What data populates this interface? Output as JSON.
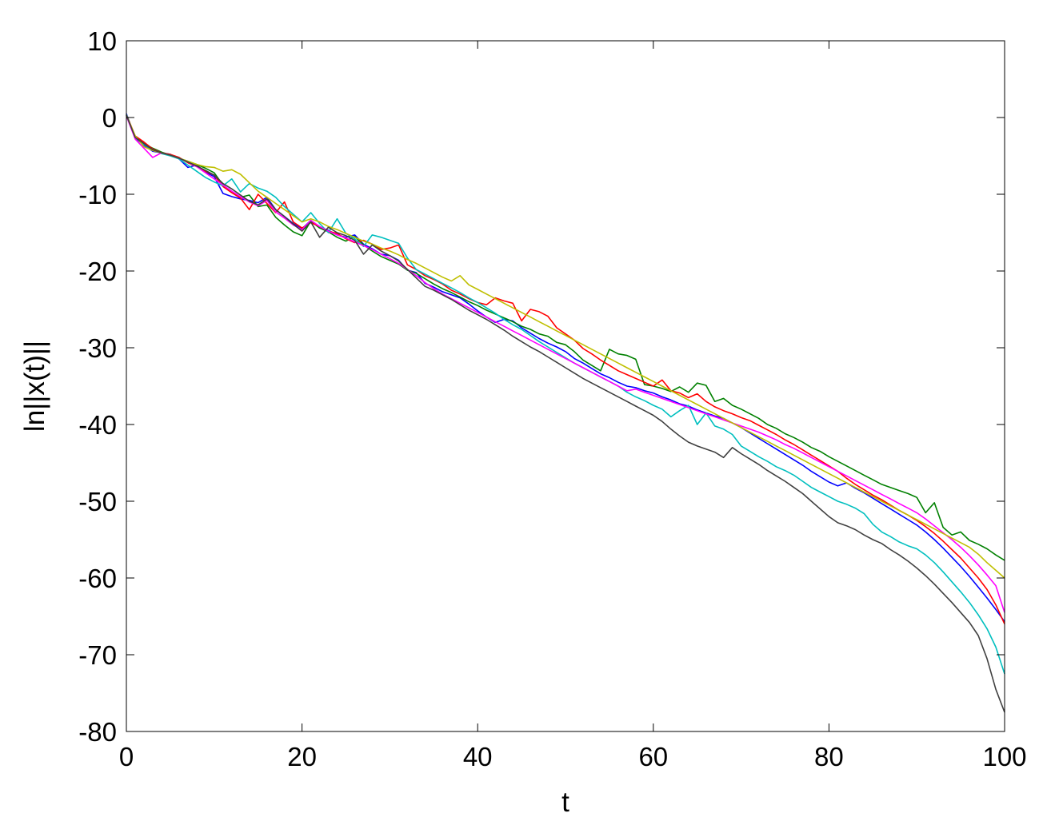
{
  "chart_data": {
    "type": "line",
    "xlabel": "t",
    "ylabel": "ln||x(t)||",
    "xlim": [
      0,
      100
    ],
    "ylim": [
      -80,
      10
    ],
    "xticks": [
      0,
      20,
      40,
      60,
      80,
      100
    ],
    "yticks": [
      10,
      0,
      -10,
      -20,
      -30,
      -40,
      -50,
      -60,
      -70,
      -80
    ],
    "xtick_labels": [
      "0",
      "20",
      "40",
      "60",
      "80",
      "100"
    ],
    "ytick_labels": [
      "10",
      "0",
      "-10",
      "-20",
      "-30",
      "-40",
      "-50",
      "-60",
      "-70",
      "-80"
    ],
    "grid": false,
    "legend": "none",
    "x": [
      0,
      1,
      2,
      3,
      4,
      5,
      6,
      7,
      8,
      9,
      10,
      11,
      12,
      13,
      14,
      15,
      16,
      17,
      18,
      19,
      20,
      21,
      22,
      23,
      24,
      25,
      26,
      27,
      28,
      29,
      30,
      31,
      32,
      33,
      34,
      35,
      36,
      37,
      38,
      39,
      40,
      41,
      42,
      43,
      44,
      45,
      46,
      47,
      48,
      49,
      50,
      51,
      52,
      53,
      54,
      55,
      56,
      57,
      58,
      59,
      60,
      61,
      62,
      63,
      64,
      65,
      66,
      67,
      68,
      69,
      70,
      71,
      72,
      73,
      74,
      75,
      76,
      77,
      78,
      79,
      80,
      81,
      82,
      83,
      84,
      85,
      86,
      87,
      88,
      89,
      90,
      91,
      92,
      93,
      94,
      95,
      96,
      97,
      98,
      99,
      100
    ],
    "series": [
      {
        "color": "#0000ff",
        "values": [
          0.5,
          -2.7,
          -3.6,
          -4.4,
          -4.6,
          -4.8,
          -5.4,
          -6.5,
          -6.2,
          -7.1,
          -7.7,
          -9.9,
          -10.3,
          -10.6,
          -10.8,
          -11.1,
          -10.4,
          -12.0,
          -12.9,
          -13.8,
          -14.5,
          -13.4,
          -14.3,
          -14.7,
          -15.3,
          -15.6,
          -15.3,
          -16.5,
          -17.1,
          -17.8,
          -18.0,
          -18.6,
          -19.9,
          -20.2,
          -21.6,
          -22.1,
          -22.7,
          -23.1,
          -23.5,
          -24.3,
          -25.2,
          -26.0,
          -26.7,
          -26.3,
          -26.5,
          -27.4,
          -28.1,
          -28.8,
          -29.4,
          -29.9,
          -30.5,
          -31.4,
          -32.0,
          -32.7,
          -33.4,
          -33.9,
          -34.5,
          -35.0,
          -35.2,
          -35.6,
          -35.9,
          -36.4,
          -36.8,
          -37.3,
          -37.6,
          -38.1,
          -38.5,
          -38.9,
          -39.2,
          -39.8,
          -40.4,
          -41.1,
          -41.8,
          -42.5,
          -43.2,
          -43.9,
          -44.6,
          -45.3,
          -46.1,
          -46.8,
          -47.5,
          -48.0,
          -47.6,
          -48.3,
          -48.9,
          -49.6,
          -50.3,
          -51.0,
          -51.7,
          -52.4,
          -53.1,
          -54.0,
          -55.0,
          -56.1,
          -57.3,
          -58.5,
          -59.8,
          -61.2,
          -62.6,
          -64.1,
          -65.7
        ]
      },
      {
        "color": "#008000",
        "values": [
          0.3,
          -2.5,
          -3.4,
          -4.0,
          -4.5,
          -4.9,
          -5.3,
          -5.7,
          -6.1,
          -6.6,
          -7.2,
          -8.8,
          -9.7,
          -10.4,
          -10.1,
          -11.6,
          -11.4,
          -13.0,
          -14.0,
          -14.9,
          -15.4,
          -13.5,
          -14.4,
          -14.9,
          -15.6,
          -16.1,
          -15.5,
          -16.6,
          -17.4,
          -18.1,
          -18.6,
          -19.1,
          -19.9,
          -20.3,
          -21.0,
          -21.7,
          -22.3,
          -22.8,
          -23.4,
          -24.0,
          -24.5,
          -25.1,
          -25.6,
          -26.1,
          -26.6,
          -27.2,
          -27.6,
          -28.2,
          -28.5,
          -29.3,
          -29.6,
          -30.5,
          -31.6,
          -32.3,
          -33.0,
          -30.2,
          -30.8,
          -31.0,
          -31.5,
          -34.8,
          -35.0,
          -35.3,
          -35.7,
          -35.1,
          -35.8,
          -34.6,
          -34.9,
          -37.0,
          -36.6,
          -37.5,
          -38.0,
          -38.6,
          -39.2,
          -40.0,
          -40.5,
          -41.2,
          -41.7,
          -42.3,
          -43.0,
          -43.5,
          -44.2,
          -44.8,
          -45.4,
          -46.0,
          -46.6,
          -47.2,
          -47.8,
          -48.2,
          -48.6,
          -49.0,
          -49.5,
          -51.5,
          -50.2,
          -53.4,
          -54.4,
          -54.0,
          -55.1,
          -55.6,
          -56.2,
          -57.0,
          -57.7
        ]
      },
      {
        "color": "#ff0000",
        "values": [
          0.4,
          -2.4,
          -3.2,
          -4.1,
          -4.6,
          -4.8,
          -5.2,
          -5.9,
          -6.4,
          -7.0,
          -7.5,
          -9.0,
          -9.8,
          -10.5,
          -12.0,
          -10.0,
          -11.2,
          -12.4,
          -11.0,
          -13.6,
          -14.4,
          -13.7,
          -14.2,
          -14.8,
          -15.1,
          -15.8,
          -16.3,
          -16.0,
          -16.5,
          -17.2,
          -17.0,
          -16.6,
          -19.2,
          -19.8,
          -20.6,
          -21.1,
          -21.7,
          -22.5,
          -23.0,
          -23.6,
          -24.1,
          -24.4,
          -23.5,
          -23.9,
          -24.2,
          -26.5,
          -25.0,
          -25.3,
          -25.9,
          -27.4,
          -28.2,
          -29.0,
          -30.1,
          -30.8,
          -31.6,
          -32.3,
          -33.0,
          -33.5,
          -34.0,
          -34.5,
          -35.0,
          -34.2,
          -35.6,
          -35.9,
          -36.5,
          -36.0,
          -37.0,
          -37.7,
          -38.2,
          -38.6,
          -39.1,
          -39.5,
          -40.1,
          -40.7,
          -41.3,
          -42.0,
          -42.6,
          -43.3,
          -44.0,
          -44.7,
          -45.4,
          -46.1,
          -47.0,
          -47.8,
          -48.5,
          -49.2,
          -49.8,
          -50.5,
          -51.2,
          -51.8,
          -52.5,
          -53.3,
          -54.2,
          -55.2,
          -56.3,
          -57.4,
          -58.7,
          -60.0,
          -61.5,
          -63.5,
          -66.0
        ]
      },
      {
        "color": "#00bfbf",
        "values": [
          0.4,
          -2.6,
          -3.5,
          -4.2,
          -4.7,
          -5.0,
          -5.4,
          -6.2,
          -7.0,
          -7.8,
          -8.4,
          -8.9,
          -8.0,
          -9.7,
          -8.6,
          -9.2,
          -9.6,
          -10.4,
          -11.6,
          -12.6,
          -13.6,
          -12.4,
          -13.8,
          -15.0,
          -13.2,
          -15.1,
          -15.8,
          -16.8,
          -15.3,
          -15.6,
          -16.0,
          -16.4,
          -18.3,
          -19.8,
          -20.4,
          -21.0,
          -21.6,
          -22.2,
          -22.8,
          -23.5,
          -24.1,
          -24.8,
          -25.5,
          -26.3,
          -27.0,
          -27.6,
          -28.4,
          -29.2,
          -29.9,
          -30.6,
          -31.3,
          -32.0,
          -32.6,
          -33.2,
          -33.8,
          -34.4,
          -35.0,
          -35.8,
          -36.4,
          -36.9,
          -37.5,
          -38.0,
          -39.0,
          -38.2,
          -37.5,
          -40.0,
          -38.5,
          -40.2,
          -40.6,
          -41.3,
          -42.8,
          -43.5,
          -44.2,
          -44.8,
          -45.5,
          -46.0,
          -46.6,
          -47.4,
          -48.2,
          -48.8,
          -49.4,
          -50.0,
          -50.4,
          -50.9,
          -51.6,
          -53.0,
          -54.0,
          -54.6,
          -55.3,
          -55.8,
          -56.2,
          -57.0,
          -58.0,
          -59.2,
          -60.5,
          -61.8,
          -63.2,
          -64.8,
          -66.6,
          -69.0,
          -72.5
        ]
      },
      {
        "color": "#ff00ff",
        "values": [
          0.2,
          -2.8,
          -4.0,
          -5.2,
          -4.6,
          -4.9,
          -5.3,
          -5.8,
          -6.4,
          -7.2,
          -8.0,
          -8.8,
          -9.6,
          -10.3,
          -11.0,
          -11.5,
          -10.8,
          -12.3,
          -13.1,
          -14.0,
          -14.6,
          -13.4,
          -14.2,
          -14.8,
          -15.3,
          -15.7,
          -16.2,
          -16.7,
          -17.2,
          -17.8,
          -18.4,
          -19.0,
          -19.8,
          -20.6,
          -21.5,
          -22.3,
          -23.0,
          -23.6,
          -24.2,
          -24.8,
          -25.4,
          -26.0,
          -26.6,
          -27.2,
          -27.8,
          -28.4,
          -29.0,
          -29.6,
          -30.2,
          -30.8,
          -31.4,
          -32.0,
          -32.6,
          -33.2,
          -33.8,
          -34.4,
          -35.0,
          -35.6,
          -35.4,
          -35.8,
          -36.2,
          -36.6,
          -37.0,
          -37.4,
          -37.8,
          -38.2,
          -38.6,
          -39.0,
          -39.4,
          -39.8,
          -40.2,
          -40.6,
          -41.0,
          -41.5,
          -42.0,
          -42.6,
          -43.1,
          -43.7,
          -44.3,
          -44.9,
          -45.5,
          -46.1,
          -46.7,
          -47.3,
          -47.9,
          -48.5,
          -49.1,
          -49.7,
          -50.3,
          -50.9,
          -51.5,
          -52.3,
          -53.2,
          -54.1,
          -55.0,
          -56.0,
          -57.1,
          -58.3,
          -59.6,
          -61.0,
          -64.5
        ]
      },
      {
        "color": "#bfbf00",
        "values": [
          0.3,
          -2.4,
          -3.8,
          -4.3,
          -4.6,
          -4.9,
          -5.3,
          -5.7,
          -6.1,
          -6.4,
          -6.5,
          -7.0,
          -6.8,
          -7.4,
          -8.5,
          -9.6,
          -10.4,
          -11.2,
          -12.0,
          -12.8,
          -13.6,
          -13.2,
          -13.6,
          -14.2,
          -14.6,
          -15.1,
          -15.6,
          -16.1,
          -16.5,
          -17.0,
          -17.4,
          -17.9,
          -18.5,
          -19.0,
          -19.6,
          -20.2,
          -20.8,
          -21.3,
          -20.6,
          -21.8,
          -22.4,
          -23.0,
          -23.6,
          -24.2,
          -24.8,
          -25.4,
          -26.0,
          -26.6,
          -27.2,
          -27.8,
          -28.4,
          -29.0,
          -29.6,
          -30.2,
          -30.8,
          -31.4,
          -32.0,
          -32.6,
          -33.2,
          -33.8,
          -34.4,
          -35.0,
          -35.6,
          -36.2,
          -36.8,
          -37.4,
          -38.0,
          -38.6,
          -39.2,
          -39.8,
          -40.4,
          -41.0,
          -41.6,
          -42.2,
          -42.8,
          -43.4,
          -44.0,
          -44.6,
          -45.2,
          -45.8,
          -46.4,
          -47.0,
          -47.6,
          -48.2,
          -48.8,
          -49.4,
          -50.0,
          -50.6,
          -51.2,
          -51.8,
          -52.4,
          -53.0,
          -53.6,
          -54.2,
          -54.8,
          -55.4,
          -56.0,
          -56.9,
          -58.0,
          -59.0,
          -60.0
        ]
      },
      {
        "color": "#404040",
        "values": [
          0.3,
          -2.6,
          -3.4,
          -4.2,
          -4.6,
          -4.9,
          -5.3,
          -5.8,
          -6.3,
          -6.9,
          -7.5,
          -8.6,
          -9.3,
          -10.1,
          -10.9,
          -11.4,
          -10.6,
          -12.0,
          -12.9,
          -13.9,
          -14.8,
          -13.6,
          -15.6,
          -14.3,
          -15.0,
          -15.4,
          -16.0,
          -17.8,
          -16.6,
          -17.4,
          -18.0,
          -18.7,
          -19.8,
          -20.9,
          -22.0,
          -22.5,
          -23.1,
          -23.7,
          -24.4,
          -25.1,
          -25.7,
          -26.3,
          -27.0,
          -27.7,
          -28.5,
          -29.2,
          -29.9,
          -30.5,
          -31.2,
          -31.9,
          -32.6,
          -33.3,
          -34.0,
          -34.6,
          -35.2,
          -35.8,
          -36.4,
          -37.0,
          -37.6,
          -38.2,
          -38.8,
          -39.6,
          -40.6,
          -41.5,
          -42.3,
          -42.8,
          -43.2,
          -43.6,
          -44.3,
          -43.0,
          -43.8,
          -44.5,
          -45.2,
          -46.0,
          -46.7,
          -47.4,
          -48.2,
          -49.0,
          -50.0,
          -51.0,
          -52.0,
          -52.8,
          -53.2,
          -53.7,
          -54.4,
          -55.0,
          -55.5,
          -56.3,
          -57.0,
          -57.8,
          -58.7,
          -59.7,
          -60.8,
          -62.0,
          -63.2,
          -64.5,
          -65.8,
          -67.5,
          -70.5,
          -74.5,
          -77.5
        ]
      }
    ]
  }
}
